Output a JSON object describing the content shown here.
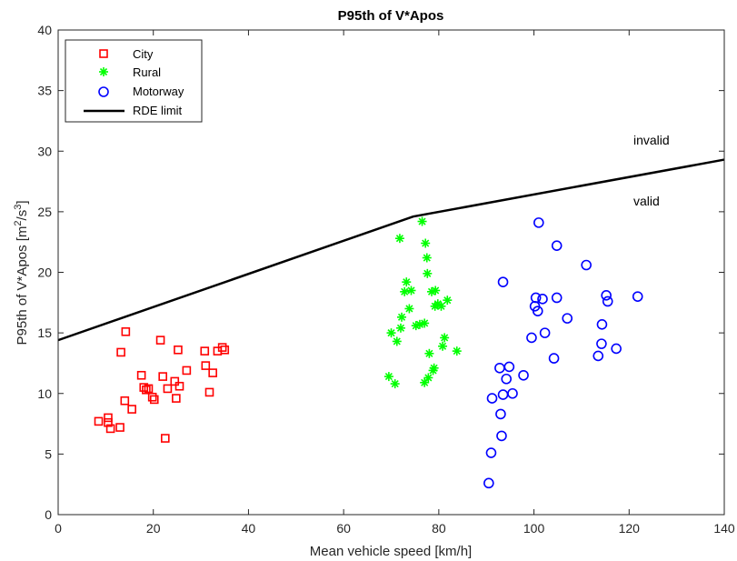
{
  "chart_data": {
    "type": "scatter",
    "title": "P95th of V*Apos",
    "xlabel": "Mean vehicle speed [km/h]",
    "ylabel": "P95th of V*Apos [m²/s³]",
    "xlim": [
      0,
      140
    ],
    "ylim": [
      0,
      40
    ],
    "xticks": [
      0,
      20,
      40,
      60,
      80,
      100,
      120,
      140
    ],
    "yticks": [
      0,
      5,
      10,
      15,
      20,
      25,
      30,
      35,
      40
    ],
    "grid": true,
    "legend_location": "top-left",
    "series": [
      {
        "name": "City",
        "marker": "square",
        "color": "#ff0000",
        "points": [
          [
            8.5,
            7.7
          ],
          [
            10.5,
            8.0
          ],
          [
            10.5,
            7.6
          ],
          [
            11.0,
            7.1
          ],
          [
            13.0,
            7.2
          ],
          [
            13.2,
            13.4
          ],
          [
            14.0,
            9.4
          ],
          [
            14.2,
            15.1
          ],
          [
            15.5,
            8.7
          ],
          [
            17.5,
            11.5
          ],
          [
            18.0,
            10.5
          ],
          [
            18.5,
            10.3
          ],
          [
            19.0,
            10.4
          ],
          [
            19.8,
            9.7
          ],
          [
            20.2,
            9.5
          ],
          [
            21.5,
            14.4
          ],
          [
            22.0,
            11.4
          ],
          [
            22.5,
            6.3
          ],
          [
            23.0,
            10.4
          ],
          [
            24.5,
            11.0
          ],
          [
            24.8,
            9.6
          ],
          [
            25.2,
            13.6
          ],
          [
            25.5,
            10.6
          ],
          [
            27.0,
            11.9
          ],
          [
            30.8,
            13.5
          ],
          [
            31.0,
            12.3
          ],
          [
            31.8,
            10.1
          ],
          [
            32.5,
            11.7
          ],
          [
            33.5,
            13.5
          ],
          [
            34.5,
            13.8
          ],
          [
            35.0,
            13.6
          ]
        ]
      },
      {
        "name": "Rural",
        "marker": "asterisk",
        "color": "#00ff00",
        "points": [
          [
            69.5,
            11.4
          ],
          [
            70.0,
            15.0
          ],
          [
            70.8,
            10.8
          ],
          [
            71.2,
            14.3
          ],
          [
            71.8,
            22.8
          ],
          [
            72.0,
            15.4
          ],
          [
            72.2,
            16.3
          ],
          [
            72.8,
            18.4
          ],
          [
            73.2,
            19.2
          ],
          [
            73.8,
            17.0
          ],
          [
            74.2,
            18.5
          ],
          [
            75.2,
            15.6
          ],
          [
            76.0,
            15.7
          ],
          [
            76.5,
            24.2
          ],
          [
            77.0,
            15.8
          ],
          [
            77.0,
            10.9
          ],
          [
            77.2,
            22.4
          ],
          [
            77.5,
            21.2
          ],
          [
            77.6,
            19.9
          ],
          [
            77.8,
            11.3
          ],
          [
            78.0,
            13.3
          ],
          [
            78.5,
            18.4
          ],
          [
            78.8,
            11.9
          ],
          [
            79.0,
            12.1
          ],
          [
            79.2,
            17.2
          ],
          [
            79.3,
            18.5
          ],
          [
            79.8,
            17.4
          ],
          [
            80.5,
            17.2
          ],
          [
            80.8,
            13.9
          ],
          [
            81.2,
            14.6
          ],
          [
            81.8,
            17.7
          ],
          [
            83.8,
            13.5
          ]
        ]
      },
      {
        "name": "Motorway",
        "marker": "circle",
        "color": "#0000ff",
        "points": [
          [
            90.5,
            2.6
          ],
          [
            91.0,
            5.1
          ],
          [
            91.2,
            9.6
          ],
          [
            92.8,
            12.1
          ],
          [
            93.0,
            8.3
          ],
          [
            93.2,
            6.5
          ],
          [
            93.5,
            19.2
          ],
          [
            93.5,
            9.9
          ],
          [
            94.2,
            11.2
          ],
          [
            94.8,
            12.2
          ],
          [
            95.5,
            10.0
          ],
          [
            97.8,
            11.5
          ],
          [
            99.5,
            14.6
          ],
          [
            100.2,
            17.2
          ],
          [
            100.4,
            17.9
          ],
          [
            100.8,
            16.8
          ],
          [
            101.0,
            24.1
          ],
          [
            101.8,
            17.8
          ],
          [
            102.3,
            15.0
          ],
          [
            104.2,
            12.9
          ],
          [
            104.8,
            22.2
          ],
          [
            104.8,
            17.9
          ],
          [
            107.0,
            16.2
          ],
          [
            111.0,
            20.6
          ],
          [
            113.5,
            13.1
          ],
          [
            114.2,
            14.1
          ],
          [
            114.3,
            15.7
          ],
          [
            115.2,
            18.1
          ],
          [
            115.5,
            17.6
          ],
          [
            117.3,
            13.7
          ],
          [
            121.8,
            18.0
          ]
        ]
      },
      {
        "name": "RDE limit",
        "type": "line",
        "color": "#000000",
        "points": [
          [
            0,
            14.4
          ],
          [
            74.6,
            24.6
          ],
          [
            140,
            29.3
          ]
        ]
      }
    ],
    "annotations": [
      "invalid",
      "valid"
    ]
  }
}
